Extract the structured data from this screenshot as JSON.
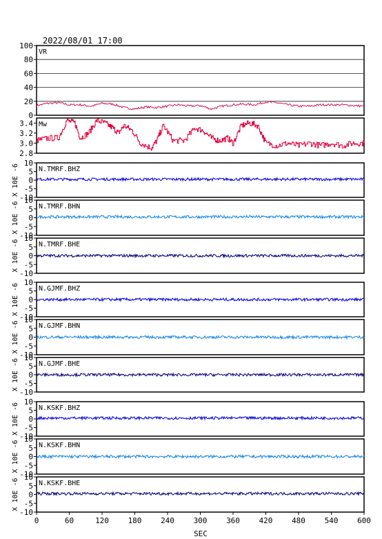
{
  "title": "2022/08/01  17:00",
  "xlabel": "SEC",
  "colors": {
    "frame": "#000000",
    "vr": "#d8104a",
    "mw": "#e0003c",
    "bhz": "#0a0adc",
    "bhn": "#1e8ae6",
    "bhe": "#0a0a78"
  },
  "chart_data": {
    "type": "line",
    "x_range": [
      0,
      600
    ],
    "x_ticks": [
      "0",
      "60",
      "120",
      "180",
      "240",
      "300",
      "360",
      "420",
      "480",
      "540",
      "600"
    ],
    "panels": [
      {
        "id": "vr",
        "label": "VR",
        "ylim": [
          0,
          100
        ],
        "y_ticks": [
          "100",
          "80",
          "60",
          "40",
          "20",
          "0"
        ],
        "grid": true,
        "series_points": [
          [
            0,
            14
          ],
          [
            20,
            17
          ],
          [
            40,
            18
          ],
          [
            60,
            15
          ],
          [
            80,
            15
          ],
          [
            100,
            13
          ],
          [
            120,
            17
          ],
          [
            140,
            16
          ],
          [
            160,
            11
          ],
          [
            180,
            9
          ],
          [
            200,
            12
          ],
          [
            220,
            11
          ],
          [
            240,
            13
          ],
          [
            260,
            15
          ],
          [
            280,
            13
          ],
          [
            300,
            14
          ],
          [
            320,
            9
          ],
          [
            340,
            13
          ],
          [
            360,
            15
          ],
          [
            380,
            16
          ],
          [
            400,
            15
          ],
          [
            420,
            19
          ],
          [
            440,
            18
          ],
          [
            460,
            15
          ],
          [
            480,
            13
          ],
          [
            500,
            13
          ],
          [
            520,
            15
          ],
          [
            540,
            15
          ],
          [
            560,
            15
          ],
          [
            580,
            14
          ],
          [
            600,
            13
          ]
        ]
      },
      {
        "id": "mw",
        "label": "Mw",
        "ylim": [
          2.8,
          3.5
        ],
        "y_ticks": [
          "3.4",
          "3.2",
          "3.0",
          "2.8"
        ],
        "grid": false,
        "series_points": [
          [
            0,
            3.05
          ],
          [
            20,
            3.1
          ],
          [
            40,
            3.1
          ],
          [
            55,
            3.45
          ],
          [
            70,
            3.4
          ],
          [
            80,
            3.1
          ],
          [
            95,
            3.2
          ],
          [
            110,
            3.45
          ],
          [
            125,
            3.4
          ],
          [
            140,
            3.3
          ],
          [
            150,
            3.2
          ],
          [
            160,
            3.35
          ],
          [
            175,
            3.25
          ],
          [
            190,
            3.0
          ],
          [
            210,
            2.9
          ],
          [
            220,
            3.05
          ],
          [
            232,
            3.35
          ],
          [
            250,
            3.05
          ],
          [
            270,
            3.05
          ],
          [
            290,
            3.3
          ],
          [
            305,
            3.25
          ],
          [
            320,
            3.1
          ],
          [
            335,
            3.05
          ],
          [
            350,
            3.1
          ],
          [
            360,
            3.0
          ],
          [
            375,
            3.35
          ],
          [
            390,
            3.4
          ],
          [
            405,
            3.35
          ],
          [
            420,
            3.0
          ],
          [
            440,
            2.95
          ],
          [
            460,
            3.0
          ],
          [
            480,
            2.95
          ],
          [
            500,
            3.0
          ],
          [
            520,
            2.95
          ],
          [
            540,
            3.0
          ],
          [
            560,
            2.95
          ],
          [
            580,
            3.0
          ],
          [
            600,
            3.0
          ]
        ]
      },
      {
        "id": "tmrf-bhz",
        "label": "N.TMRF.BHZ",
        "unit": "X 10E -6",
        "ylim": [
          -10,
          10
        ],
        "y_ticks": [
          "10",
          "5",
          "0",
          "-5",
          "-10"
        ],
        "channel": "bhz",
        "level": 0.5
      },
      {
        "id": "tmrf-bhn",
        "label": "N.TMRF.BHN",
        "unit": "X 10E -6",
        "ylim": [
          -10,
          10
        ],
        "y_ticks": [
          "10",
          "5",
          "0",
          "-5",
          "-10"
        ],
        "channel": "bhn",
        "level": 0.5
      },
      {
        "id": "tmrf-bhe",
        "label": "N.TMRF.BHE",
        "unit": "X 10E -6",
        "ylim": [
          -10,
          10
        ],
        "y_ticks": [
          "10",
          "5",
          "0",
          "-5",
          "-10"
        ],
        "channel": "bhe",
        "level": 0
      },
      {
        "id": "gjmf-bhz",
        "label": "N.GJMF.BHZ",
        "unit": "X 10E -6",
        "ylim": [
          -10,
          10
        ],
        "y_ticks": [
          "10",
          "5",
          "0",
          "-5",
          "-10"
        ],
        "channel": "bhz",
        "level": 0
      },
      {
        "id": "gjmf-bhn",
        "label": "N.GJMF.BHN",
        "unit": "X 10E -6",
        "ylim": [
          -10,
          10
        ],
        "y_ticks": [
          "10",
          "5",
          "0",
          "-5",
          "-10"
        ],
        "channel": "bhn",
        "level": 0
      },
      {
        "id": "gjmf-bhe",
        "label": "N.GJMF.BHE",
        "unit": "X 10E -6",
        "ylim": [
          -10,
          10
        ],
        "y_ticks": [
          "10",
          "5",
          "0",
          "-5",
          "-10"
        ],
        "channel": "bhe",
        "level": 0
      },
      {
        "id": "kskf-bhz",
        "label": "N.KSKF.BHZ",
        "unit": "X 10E -6",
        "ylim": [
          -10,
          10
        ],
        "y_ticks": [
          "10",
          "5",
          "0",
          "-5",
          "-10"
        ],
        "channel": "bhz",
        "level": 0.5
      },
      {
        "id": "kskf-bhn",
        "label": "N.KSKF.BHN",
        "unit": "X 10E -6",
        "ylim": [
          -10,
          10
        ],
        "y_ticks": [
          "10",
          "5",
          "0",
          "-5",
          "-10"
        ],
        "channel": "bhn",
        "level": 0
      },
      {
        "id": "kskf-bhe",
        "label": "N.KSKF.BHE",
        "unit": "X 10E -6",
        "ylim": [
          -10,
          10
        ],
        "y_ticks": [
          "10",
          "5",
          "0",
          "-5",
          "-10"
        ],
        "channel": "bhe",
        "level": 0.5
      }
    ]
  }
}
